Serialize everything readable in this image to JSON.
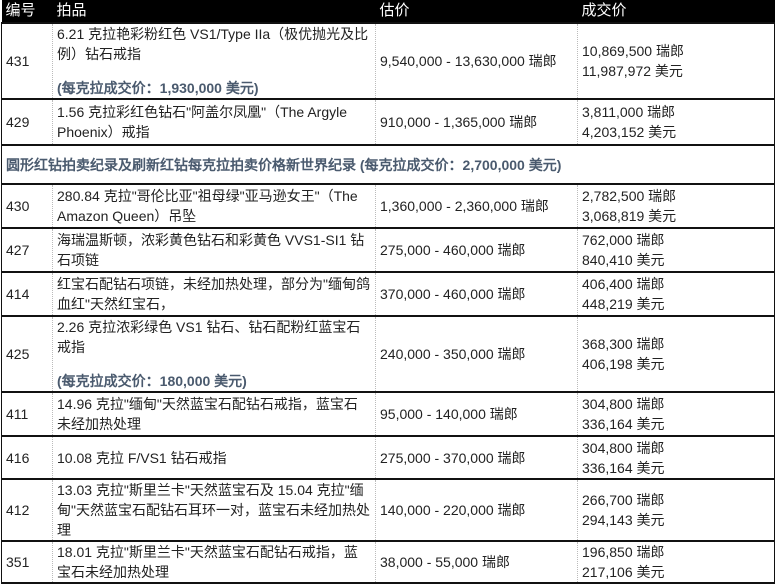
{
  "headers": [
    "编号",
    "拍品",
    "估价",
    "成交价"
  ],
  "rows": [
    {
      "lot": "431",
      "item": "6.21 克拉艳彩粉红色 VS1/Type IIa（极优抛光及比例）钻石戒指",
      "note": "(每克拉成交价：1,930,000 美元)",
      "estimate": "9,540,000 - 13,630,000 瑞郎",
      "price_chf": "10,869,500 瑞郎",
      "price_usd": "11,987,972 美元"
    },
    {
      "lot": "429",
      "item": "1.56 克拉彩红色钻石\"阿盖尔凤凰\"（The Argyle Phoenix）戒指",
      "estimate": "910,000 - 1,365,000 瑞郎",
      "price_chf": "3,811,000 瑞郎",
      "price_usd": "4,203,152 美元"
    },
    {
      "banner": "圆形红钻拍卖纪录及刷新红钻每克拉拍卖价格新世界纪录 (每克拉成交价：2,700,000 美元)"
    },
    {
      "lot": "430",
      "item": "280.84 克拉\"哥伦比亚\"祖母绿\"亚马逊女王\"（The Amazon Queen）吊坠",
      "estimate": "1,360,000 - 2,360,000 瑞郎",
      "price_chf": "2,782,500 瑞郎",
      "price_usd": "3,068,819 美元"
    },
    {
      "lot": "427",
      "item": "海瑞温斯顿，浓彩黄色钻石和彩黄色 VVS1-SI1 钻石项链",
      "estimate": "275,000 - 460,000 瑞郎",
      "price_chf": "762,000 瑞郎",
      "price_usd": "840,410 美元"
    },
    {
      "lot": "414",
      "item": "红宝石配钻石项链，未经加热处理，部分为\"缅甸鸽血红\"天然红宝石，",
      "estimate": "370,000 - 460,000 瑞郎",
      "price_chf": "406,400 瑞郎",
      "price_usd": "448,219 美元"
    },
    {
      "lot": "425",
      "item": "2.26 克拉浓彩绿色 VS1 钻石、钻石配粉红蓝宝石戒指",
      "note": "(每克拉成交价：180,000 美元)",
      "estimate": "240,000 - 350,000 瑞郎",
      "price_chf": "368,300 瑞郎",
      "price_usd": "406,198 美元"
    },
    {
      "lot": "411",
      "item": "14.96 克拉\"缅甸\"天然蓝宝石配钻石戒指，蓝宝石未经加热处理",
      "estimate": "95,000 - 140,000 瑞郎",
      "price_chf": "304,800 瑞郎",
      "price_usd": "336,164 美元"
    },
    {
      "lot": "416",
      "item": "10.08 克拉 F/VS1 钻石戒指",
      "estimate": "275,000 - 370,000 瑞郎",
      "price_chf": "304,800 瑞郎",
      "price_usd": "336,164 美元"
    },
    {
      "lot": "412",
      "item": "13.03 克拉\"斯里兰卡\"天然蓝宝石及 15.04 克拉\"缅甸\"天然蓝宝石配钻石耳环一对，蓝宝石未经加热处理",
      "estimate": "140,000 - 220,000 瑞郎",
      "price_chf": "266,700 瑞郎",
      "price_usd": "294,143 美元"
    },
    {
      "lot": "351",
      "item": "18.01 克拉\"斯里兰卡\"天然蓝宝石配钻石戒指，蓝宝石未经加热处理",
      "estimate": "38,000 - 55,000 瑞郎",
      "price_chf": "196,850 瑞郎",
      "price_usd": "217,106 美元"
    }
  ]
}
